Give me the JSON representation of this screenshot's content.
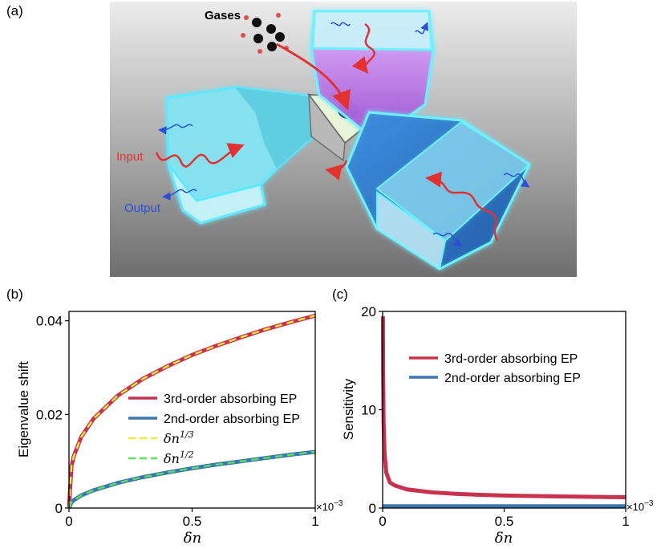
{
  "panels": {
    "a": {
      "tag": "(a)"
    },
    "b": {
      "tag": "(b)"
    },
    "c": {
      "tag": "(c)"
    }
  },
  "illustration": {
    "gases_label": "Gases",
    "input_label": "Input",
    "output_label": "Output",
    "colors": {
      "input": "#e53030",
      "output": "#2a4fd8",
      "gases": "#000000"
    }
  },
  "colors": {
    "third_order": "#c8324e",
    "second_order": "#3a76b3",
    "fit_third": "#f2e93a",
    "fit_second": "#5fe05a"
  },
  "chart_data": [
    {
      "id": "b",
      "type": "line",
      "xlabel": "δn",
      "ylabel": "Eigenvalue shift",
      "xlim": [
        0,
        0.001
      ],
      "ylim": [
        0,
        0.042
      ],
      "xticks": [
        0,
        0.0005,
        0.001
      ],
      "xtick_labels": [
        "0",
        "0.5",
        "1"
      ],
      "yticks": [
        0,
        0.02,
        0.04
      ],
      "ytick_labels": [
        "0",
        "0.02",
        "0.04"
      ],
      "x_multiplier": "×10",
      "x_multiplier_exp": "−3",
      "legend_position": "center-right",
      "x": [
        0,
        1e-05,
        2e-05,
        5e-05,
        0.0001,
        0.0002,
        0.0003,
        0.0004,
        0.0005,
        0.0006,
        0.0007,
        0.0008,
        0.0009,
        0.001
      ],
      "series": [
        {
          "name": "3rd-order absorbing EP",
          "style": "solid",
          "values": [
            0,
            0.0089,
            0.0112,
            0.0152,
            0.0191,
            0.0241,
            0.0276,
            0.0303,
            0.0327,
            0.0347,
            0.0365,
            0.0382,
            0.0397,
            0.0411
          ]
        },
        {
          "name": "2nd-order absorbing EP",
          "style": "solid",
          "values": [
            0,
            0.0012,
            0.0017,
            0.0027,
            0.0038,
            0.0054,
            0.0066,
            0.0076,
            0.0085,
            0.0093,
            0.01,
            0.0107,
            0.0114,
            0.012
          ]
        },
        {
          "name": "δn",
          "name_sup": "1/3",
          "style": "dashed",
          "values": [
            0,
            0.0089,
            0.0112,
            0.0152,
            0.0191,
            0.0241,
            0.0276,
            0.0303,
            0.0327,
            0.0347,
            0.0365,
            0.0382,
            0.0397,
            0.0411
          ]
        },
        {
          "name": "δn",
          "name_sup": "1/2",
          "style": "dashed",
          "values": [
            0,
            0.0012,
            0.0017,
            0.0027,
            0.0038,
            0.0054,
            0.0066,
            0.0076,
            0.0085,
            0.0093,
            0.01,
            0.0107,
            0.0114,
            0.012
          ]
        }
      ]
    },
    {
      "id": "c",
      "type": "line",
      "xlabel": "δn",
      "ylabel": "Sensitivity",
      "xlim": [
        0,
        0.001
      ],
      "ylim": [
        0,
        20
      ],
      "xticks": [
        0,
        0.0005,
        0.001
      ],
      "xtick_labels": [
        "0",
        "0.5",
        "1"
      ],
      "yticks": [
        0,
        10,
        20
      ],
      "ytick_labels": [
        "0",
        "10",
        "20"
      ],
      "x_multiplier": "×10",
      "x_multiplier_exp": "−3",
      "legend_position": "top-right",
      "x": [
        1.2e-06,
        2e-06,
        4e-06,
        8e-06,
        1.5e-05,
        3e-05,
        5e-05,
        0.0001,
        0.0002,
        0.0003,
        0.0004,
        0.0005,
        0.0006,
        0.0007,
        0.0008,
        0.0009,
        0.001
      ],
      "series": [
        {
          "name": "3rd-order absorbing EP",
          "style": "solid",
          "values": [
            19.5,
            13.8,
            8.7,
            5.5,
            3.6,
            2.6,
            2.3,
            1.9,
            1.6,
            1.45,
            1.35,
            1.28,
            1.23,
            1.19,
            1.16,
            1.13,
            1.1
          ]
        },
        {
          "name": "2nd-order absorbing EP",
          "style": "solid",
          "values": [
            0.18,
            0.18,
            0.18,
            0.18,
            0.18,
            0.18,
            0.18,
            0.18,
            0.18,
            0.18,
            0.18,
            0.18,
            0.18,
            0.18,
            0.18,
            0.18,
            0.18
          ]
        }
      ]
    }
  ]
}
